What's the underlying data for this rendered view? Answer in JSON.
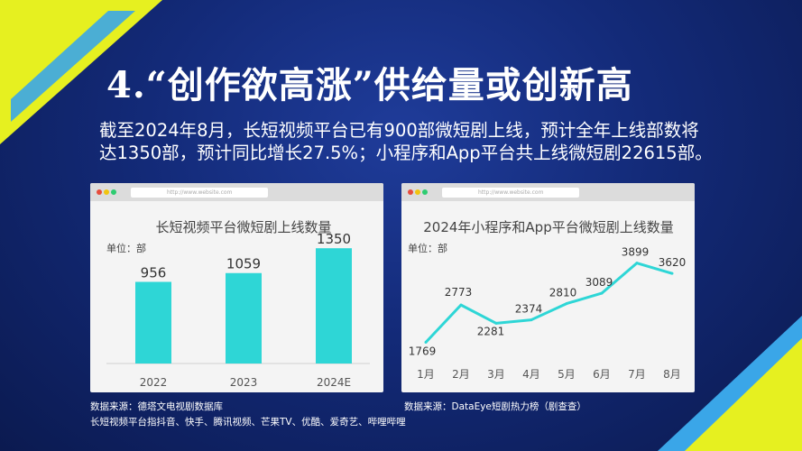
{
  "title": "4.“创作欲高涨”供给量或创新高",
  "description": "截至2024年8月，长短视频平台已有900部微短剧上线，预计全年上线部数将达1350部，预计同比增长27.5%；小程序和App平台共上线微短剧22615部。",
  "colors": {
    "accent": "#2ed6d6",
    "yellow": "#e6f020",
    "background": "#132a78"
  },
  "browser_url": "http://www.website.com",
  "sources": {
    "left_line1": "数据来源：德塔文电视剧数据库",
    "left_line2": "长短视频平台指抖音、快手、腾讯视频、芒果TV、优酷、爱奇艺、哔哩哔哩",
    "right_line1": "数据来源：DataEye短剧热力榜（剧查查）"
  },
  "chart_data": [
    {
      "type": "bar",
      "title": "长短视频平台微短剧上线数量",
      "unit_label": "单位：部",
      "categories": [
        "2022",
        "2023",
        "2024E"
      ],
      "values": [
        956,
        1059,
        1350
      ],
      "ylim": [
        0,
        1500
      ]
    },
    {
      "type": "line",
      "title": "2024年小程序和App平台微短剧上线数量",
      "unit_label": "单位：部",
      "categories": [
        "1月",
        "2月",
        "3月",
        "4月",
        "5月",
        "6月",
        "7月",
        "8月"
      ],
      "values": [
        1769,
        2773,
        2281,
        2374,
        2810,
        3089,
        3899,
        3620
      ],
      "ylim": [
        1200,
        4400
      ]
    }
  ]
}
